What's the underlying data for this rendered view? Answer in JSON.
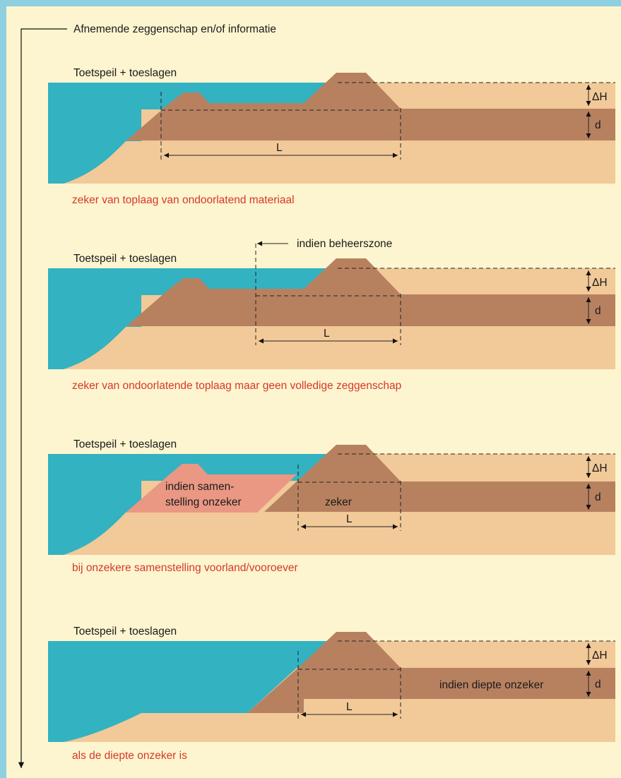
{
  "header": {
    "axis_label": "Afnemende zeggenschap en/of informatie"
  },
  "colors": {
    "frame": "#8ecfe0",
    "background": "#fdf5cf",
    "water": "#33b2c1",
    "clay": "#b78160",
    "sand": "#f2c998",
    "uncertain": "#ea9784"
  },
  "panels": [
    {
      "water_label": "Toetspeil + toeslagen",
      "caption": "zeker van toplaag van ondoorlatend materiaal",
      "length_label": "L",
      "delta_label": "ΔH",
      "depth_label": "d"
    },
    {
      "water_label": "Toetspeil + toeslagen",
      "caption": "zeker van ondoorlatende toplaag maar geen volledige zeggenschap",
      "length_label": "L",
      "delta_label": "ΔH",
      "depth_label": "d",
      "note": "indien beheerszone"
    },
    {
      "water_label": "Toetspeil + toeslagen",
      "caption": "bij onzekere samenstelling voorland/vooroever",
      "length_label": "L",
      "delta_label": "ΔH",
      "depth_label": "d",
      "uncertain_label_1": "indien samen-",
      "uncertain_label_2": "stelling onzeker",
      "certain_label": "zeker"
    },
    {
      "water_label": "Toetspeil + toeslagen",
      "caption": "als de diepte onzeker is",
      "length_label": "L",
      "delta_label": "ΔH",
      "depth_label": "d",
      "depth_note": "indien diepte onzeker"
    }
  ]
}
